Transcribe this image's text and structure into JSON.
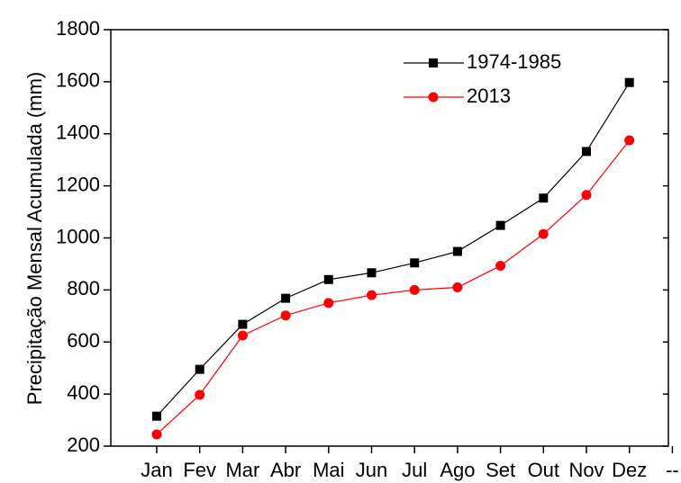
{
  "chart_data": {
    "type": "line",
    "y_label": "Precipitação Mensal Acumulada (mm)",
    "categories": [
      "Jan",
      "Fev",
      "Mar",
      "Abr",
      "Mai",
      "Jun",
      "Jul",
      "Ago",
      "Set",
      "Out",
      "Nov",
      "Dez",
      "--"
    ],
    "series": [
      {
        "name": "1974-1985",
        "color": "#000000",
        "marker": "square",
        "values": [
          315,
          495,
          668,
          768,
          840,
          866,
          904,
          948,
          1048,
          1153,
          1332,
          1597,
          null
        ]
      },
      {
        "name": "2013",
        "color": "#ff0000",
        "marker": "circle",
        "values": [
          245,
          397,
          625,
          702,
          750,
          780,
          800,
          810,
          893,
          1015,
          1165,
          1375,
          null
        ]
      }
    ],
    "ylim": [
      200,
      1800
    ],
    "yticks": [
      200,
      400,
      600,
      800,
      1000,
      1200,
      1400,
      1600,
      1800
    ],
    "legend": "upper right"
  }
}
